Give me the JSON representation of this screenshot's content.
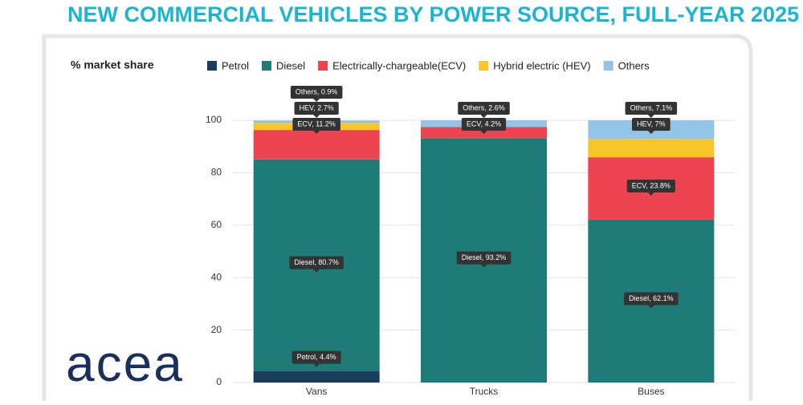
{
  "logo": "acea",
  "chart_data": {
    "type": "stacked_bar",
    "title": "NEW COMMERCIAL VEHICLES BY POWER SOURCE, FULL-YEAR 2025",
    "ylabel": "% market share",
    "legend": "top",
    "grid": true,
    "categories": [
      "Vans",
      "Trucks",
      "Buses"
    ],
    "ylim": [
      0,
      100
    ],
    "yticks": [
      0,
      20,
      40,
      60,
      80,
      100
    ],
    "series": [
      {
        "name": "Petrol",
        "color": "#1b3d5c",
        "values": [
          4.4,
          null,
          null
        ],
        "value_labels": [
          "Petrol, 4.4%",
          null,
          null
        ]
      },
      {
        "name": "Diesel",
        "color": "#1e7b78",
        "values": [
          80.7,
          93.2,
          62.1
        ],
        "value_labels": [
          "Diesel, 80.7%",
          "Diesel, 93.2%",
          "Diesel, 62.1%"
        ]
      },
      {
        "name": "Electrically-chargeable(ECV)",
        "color": "#ee4452",
        "values": [
          11.2,
          4.2,
          23.8
        ],
        "value_labels": [
          "ECV, 11.2%",
          "ECV, 4.2%",
          "ECV, 23.8%"
        ]
      },
      {
        "name": "Hybrid electric (HEV)",
        "color": "#f8c52a",
        "values": [
          2.7,
          null,
          7
        ],
        "value_labels": [
          "HEV, 2.7%",
          null,
          "HEV, 7%"
        ]
      },
      {
        "name": "Others",
        "color": "#91c4e6",
        "values": [
          0.9,
          2.6,
          7.1
        ],
        "value_labels": [
          "Others, 0.9%",
          "Others, 2.6%",
          "Others, 7.1%"
        ]
      }
    ]
  }
}
